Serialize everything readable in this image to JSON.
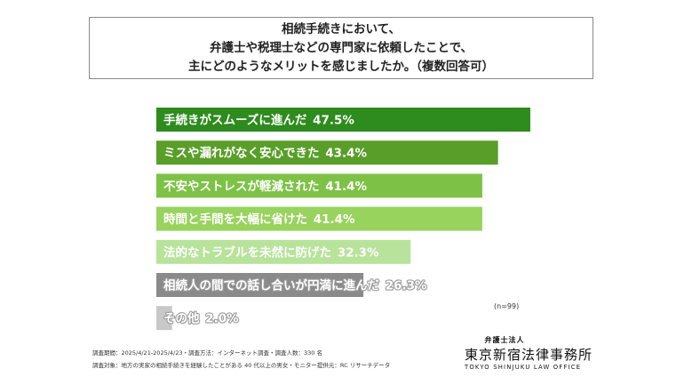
{
  "title": {
    "lines": [
      "相続手続きにおいて、",
      "弁護士や税理士などの専門家に依頼したことで、",
      "主にどのようなメリットを感じましたか。（複数回答可）"
    ]
  },
  "chart_data": {
    "type": "bar",
    "orientation": "horizontal",
    "categories": [
      "手続きがスムーズに進んだ",
      "ミスや漏れがなく安心できた",
      "不安やストレスが軽減された",
      "時間と手間を大幅に省けた",
      "法的なトラブルを未然に防げた",
      "相続人の間での話し合いが円満に進んだ",
      "その他"
    ],
    "values": [
      47.5,
      43.4,
      41.4,
      41.4,
      32.3,
      26.3,
      2.0
    ],
    "value_labels": [
      "47.5%",
      "43.4%",
      "41.4%",
      "41.4%",
      "32.3%",
      "26.3%",
      "2.0%"
    ],
    "colors": [
      "#2e8b1e",
      "#5a9e2a",
      "#7dc246",
      "#98d35e",
      "#b8e39a",
      "#8a8a8a",
      "#c8c8c8"
    ],
    "text_colors": [
      "#ffffff",
      "#ffffff",
      "#ffffff",
      "#ffffff",
      "#ffffff",
      "#ffffff",
      "#ffffff"
    ],
    "xlim": [
      0,
      47.5
    ],
    "grid": false,
    "legend": "none"
  },
  "sample_size": "(n=99)",
  "footer": {
    "line1": "調査期間：2025/4/21-2025/4/23・調査方法：インターネット調査・調査人数：330 名",
    "line2": "調査対象：地方の実家の相続手続きを経験したことがある 40 代以上の男女・モニター提供元：RC リサーチデータ"
  },
  "logo": {
    "sub": "弁護士法人",
    "main": "東京新宿法律事務所",
    "en": "TOKYO SHINJUKU LAW OFFICE"
  }
}
